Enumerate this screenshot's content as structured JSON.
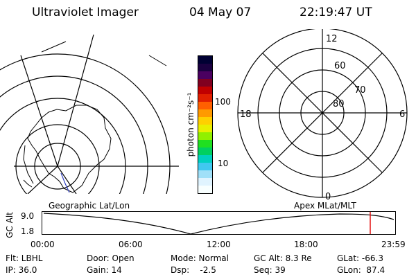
{
  "header": {
    "title": "Ultraviolet Imager",
    "date": "04 May 07",
    "time": "22:19:47 UT"
  },
  "colorbar": {
    "label": "photon cm⁻²s⁻¹",
    "ticks": [
      "100",
      "10"
    ],
    "colors": [
      "#000033",
      "#1a0040",
      "#4a0060",
      "#800020",
      "#c00000",
      "#e02000",
      "#ff6000",
      "#ff9a00",
      "#ffd000",
      "#e8f000",
      "#90f000",
      "#20e020",
      "#00d060",
      "#00d0c0",
      "#40c8f0",
      "#a0e0f8",
      "#e0f4ff",
      "#f8ffff"
    ]
  },
  "apex_plot": {
    "lat_labels": [
      "60",
      "70",
      "80"
    ],
    "mlt_labels": {
      "top": "12",
      "bottom": "0",
      "left": "18",
      "right": "6"
    }
  },
  "timeline": {
    "left_caption": "Geographic Lat/Lon",
    "right_caption": "Apex MLat/MLT",
    "y_axis_label": "GC Alt",
    "y_ticks": [
      "9.0",
      "1.8"
    ],
    "x_ticks": [
      "00:00",
      "06:00",
      "12:00",
      "18:00",
      "23:59"
    ],
    "marker_color": "#e00000"
  },
  "info": {
    "flt": "Flt: LBHL",
    "door": "Door: Open",
    "mode": "Mode: Normal",
    "gc_alt": "GC Alt: 8.3 Re",
    "glat": "GLat: -66.3",
    "ip": "IP: 36.0",
    "gain": "Gain: 14",
    "dsp": "Dsp:    -2.5",
    "seq": "Seq: 39",
    "glon": "GLon:  87.4"
  }
}
